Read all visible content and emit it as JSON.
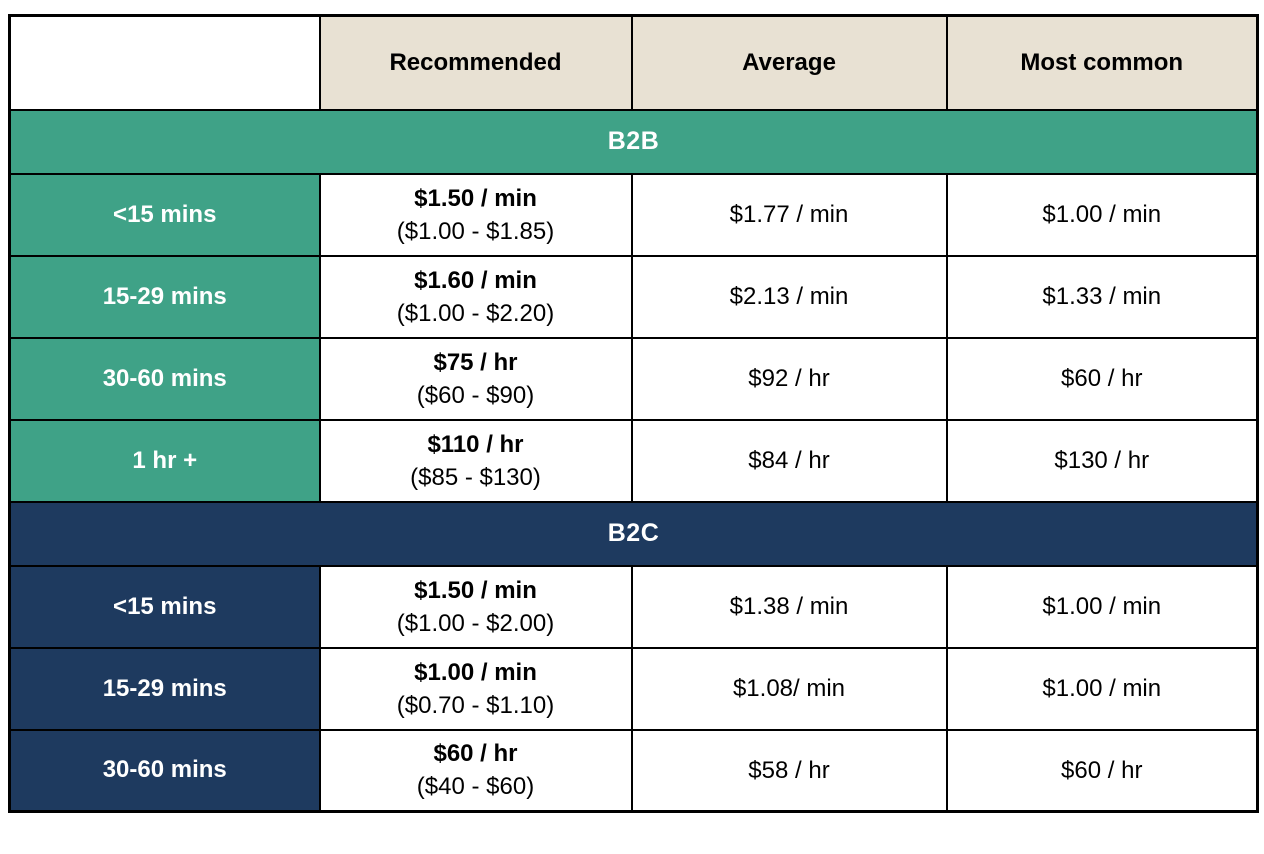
{
  "chart_data": {
    "type": "table",
    "columns": [
      "",
      "Recommended",
      "Average",
      "Most common"
    ],
    "sections": [
      {
        "name": "B2B",
        "accent_color": "#3FA287",
        "rows": [
          {
            "label": "<15 mins",
            "recommended": "$1.50 / min",
            "recommended_range": "($1.00 - $1.85)",
            "average": "$1.77 / min",
            "most_common": "$1.00 / min"
          },
          {
            "label": "15-29 mins",
            "recommended": "$1.60 / min",
            "recommended_range": "($1.00 - $2.20)",
            "average": "$2.13 / min",
            "most_common": "$1.33 / min"
          },
          {
            "label": "30-60 mins",
            "recommended": "$75 / hr",
            "recommended_range": "($60 - $90)",
            "average": "$92 / hr",
            "most_common": "$60 / hr"
          },
          {
            "label": "1 hr +",
            "recommended": "$110 / hr",
            "recommended_range": "($85 - $130)",
            "average": "$84 / hr",
            "most_common": "$130 / hr"
          }
        ]
      },
      {
        "name": "B2C",
        "accent_color": "#1E3A5F",
        "rows": [
          {
            "label": "<15 mins",
            "recommended": "$1.50 / min",
            "recommended_range": "($1.00 - $2.00)",
            "average": "$1.38 / min",
            "most_common": "$1.00 / min"
          },
          {
            "label": "15-29 mins",
            "recommended": "$1.00 / min",
            "recommended_range": "($0.70 - $1.10)",
            "average": "$1.08/ min",
            "most_common": "$1.00 / min"
          },
          {
            "label": "30-60 mins",
            "recommended": "$60 / hr",
            "recommended_range": "($40 - $60)",
            "average": "$58 / hr",
            "most_common": "$60 / hr"
          }
        ]
      }
    ],
    "layout": {
      "grid": "all-black-borders",
      "header_row_bg": "#E8E1D3",
      "corner_cell_bg": "#FFFFFF",
      "section_banner_colspan": 4
    }
  },
  "colors": {
    "header_bg": "#E8E1D3",
    "b2b_accent": "#3FA287",
    "b2c_accent": "#1E3A5F",
    "border": "#000000",
    "data_text": "#000000",
    "label_text": "#FFFFFF",
    "page_bg": "#FFFFFF"
  }
}
